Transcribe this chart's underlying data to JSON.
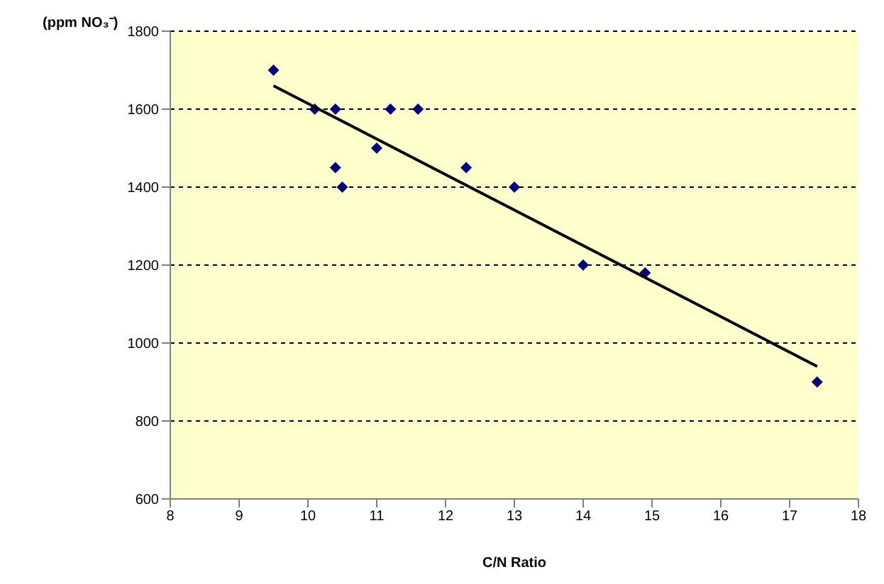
{
  "chart_data": {
    "type": "scatter",
    "xlabel": "C/N Ratio",
    "ylabel": "(ppm NO₃⁻)",
    "xlim": [
      8,
      18
    ],
    "xticks": [
      8,
      9,
      10,
      11,
      12,
      13,
      14,
      15,
      16,
      17,
      18
    ],
    "ylim": [
      600,
      1800
    ],
    "yticks": [
      600,
      800,
      1000,
      1200,
      1400,
      1600,
      1800
    ],
    "grid": "y",
    "legend": false,
    "marker": "diamond",
    "series": [
      {
        "color": "#000080",
        "x": [
          9.5,
          10.1,
          10.4,
          10.4,
          10.5,
          11,
          11.2,
          11.6,
          12.3,
          13,
          14,
          14.9,
          17.4
        ],
        "values": [
          1700,
          1600,
          1600,
          1450,
          1400,
          1500,
          1600,
          1600,
          1450,
          1400,
          1200,
          1180,
          900
        ]
      },
      {
        "type": "line",
        "color": "#000000",
        "x": [
          9.5,
          17.4
        ],
        "values": [
          1660,
          940
        ],
        "marker": "none",
        "line_style": "solid"
      }
    ]
  }
}
